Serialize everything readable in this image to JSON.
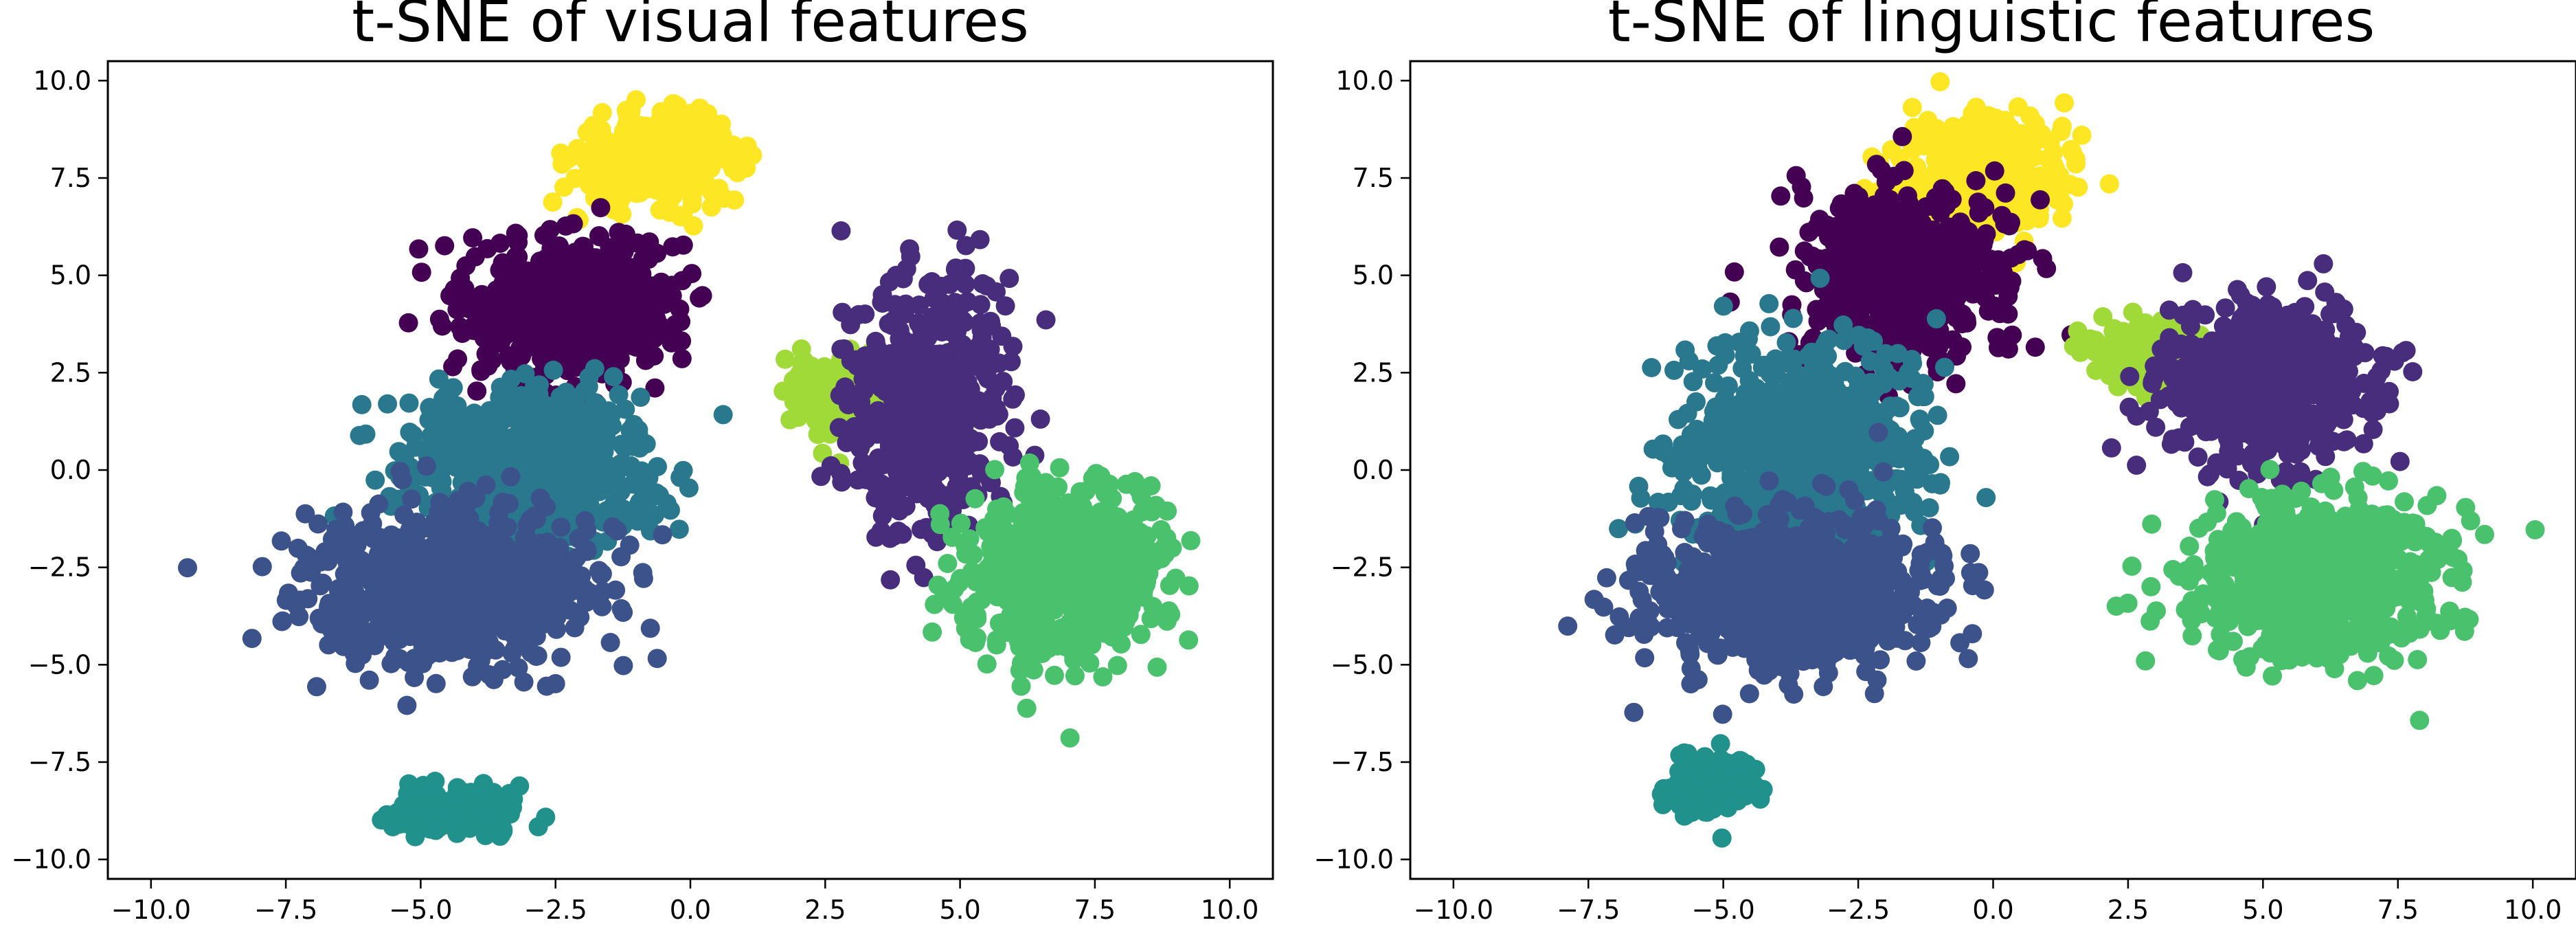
{
  "chart_data": [
    {
      "type": "scatter",
      "title": "t-SNE of visual features",
      "xlabel": "",
      "ylabel": "",
      "xlim": [
        -10.8,
        10.8
      ],
      "ylim": [
        -10.5,
        10.5
      ],
      "xticks": [
        -10.0,
        -7.5,
        -5.0,
        -2.5,
        0.0,
        2.5,
        5.0,
        7.5,
        10.0
      ],
      "yticks": [
        -10.0,
        -7.5,
        -5.0,
        -2.5,
        0.0,
        2.5,
        5.0,
        7.5,
        10.0
      ],
      "xtick_labels": [
        "−10.0",
        "−7.5",
        "−5.0",
        "−2.5",
        "0.0",
        "2.5",
        "5.0",
        "7.5",
        "10.0"
      ],
      "ytick_labels": [
        "−10.0",
        "−7.5",
        "−5.0",
        "−2.5",
        "0.0",
        "2.5",
        "5.0",
        "7.5",
        "10.0"
      ],
      "grid": false,
      "clusters": [
        {
          "color": "#fde725",
          "center": [
            -0.6,
            8.0
          ],
          "spread": [
            1.5,
            1.1
          ],
          "count": 380
        },
        {
          "color": "#440154",
          "center": [
            -2.2,
            4.2
          ],
          "spread": [
            1.9,
            1.9
          ],
          "count": 560
        },
        {
          "color": "#2a788e",
          "center": [
            -3.0,
            0.0
          ],
          "spread": [
            2.3,
            2.0
          ],
          "count": 700
        },
        {
          "color": "#3b528b",
          "center": [
            -4.5,
            -3.0
          ],
          "spread": [
            2.6,
            1.9
          ],
          "count": 820
        },
        {
          "color": "#21918c",
          "center": [
            -4.3,
            -8.8
          ],
          "spread": [
            1.1,
            0.6
          ],
          "count": 220
        },
        {
          "color": "#a0da39",
          "center": [
            2.6,
            1.9
          ],
          "spread": [
            0.8,
            1.0
          ],
          "count": 130
        },
        {
          "color": "#472d7b",
          "center": [
            4.3,
            1.6
          ],
          "spread": [
            1.5,
            3.1
          ],
          "count": 520
        },
        {
          "color": "#4ac16d",
          "center": [
            7.0,
            -2.8
          ],
          "spread": [
            1.8,
            2.1
          ],
          "count": 720
        }
      ]
    },
    {
      "type": "scatter",
      "title": "t-SNE of linguistic features",
      "xlabel": "",
      "ylabel": "",
      "xlim": [
        -10.8,
        10.8
      ],
      "ylim": [
        -10.5,
        10.5
      ],
      "xticks": [
        -10.0,
        -7.5,
        -5.0,
        -2.5,
        0.0,
        2.5,
        5.0,
        7.5,
        10.0
      ],
      "yticks": [
        -10.0,
        -7.5,
        -5.0,
        -2.5,
        0.0,
        2.5,
        5.0,
        7.5,
        10.0
      ],
      "xtick_labels": [
        "−10.0",
        "−7.5",
        "−5.0",
        "−2.5",
        "0.0",
        "2.5",
        "5.0",
        "7.5",
        "10.0"
      ],
      "ytick_labels": [
        "−10.0",
        "−7.5",
        "−5.0",
        "−2.5",
        "0.0",
        "2.5",
        "5.0",
        "7.5",
        "10.0"
      ],
      "grid": false,
      "clusters": [
        {
          "color": "#fde725",
          "center": [
            -0.2,
            7.6
          ],
          "spread": [
            1.5,
            1.5
          ],
          "count": 380
        },
        {
          "color": "#440154",
          "center": [
            -1.6,
            5.0
          ],
          "spread": [
            1.9,
            2.2
          ],
          "count": 560
        },
        {
          "color": "#2a788e",
          "center": [
            -3.5,
            0.5
          ],
          "spread": [
            2.3,
            2.6
          ],
          "count": 720
        },
        {
          "color": "#3b528b",
          "center": [
            -3.8,
            -3.0
          ],
          "spread": [
            2.6,
            1.9
          ],
          "count": 820
        },
        {
          "color": "#21918c",
          "center": [
            -5.2,
            -8.0
          ],
          "spread": [
            0.8,
            0.9
          ],
          "count": 160
        },
        {
          "color": "#a0da39",
          "center": [
            3.0,
            2.9
          ],
          "spread": [
            1.2,
            1.0
          ],
          "count": 150
        },
        {
          "color": "#472d7b",
          "center": [
            5.0,
            2.2
          ],
          "spread": [
            2.0,
            2.2
          ],
          "count": 560
        },
        {
          "color": "#4ac16d",
          "center": [
            6.0,
            -2.7
          ],
          "spread": [
            2.3,
            2.0
          ],
          "count": 720
        }
      ]
    }
  ]
}
